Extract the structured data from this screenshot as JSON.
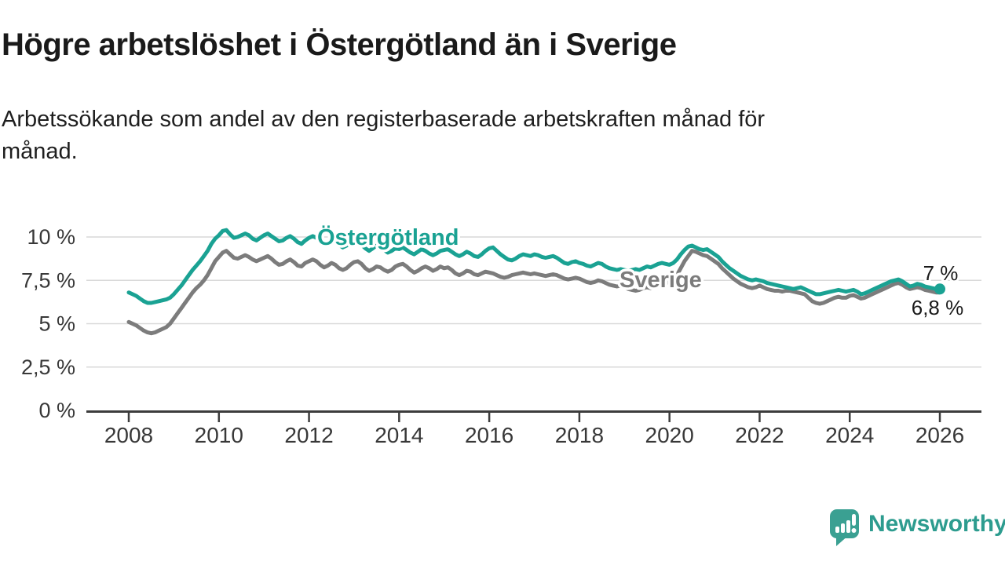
{
  "header": {
    "title": "Högre arbetslöshet i Östergötland än i Sverige",
    "subtitle": "Arbetssökande som andel av den registerbaserade arbetskraften månad för månad."
  },
  "branding": {
    "logo_text": "Newsworthy",
    "logo_icon": "bar-chart-speech-bubble-icon",
    "logo_color": "#3aa092"
  },
  "chart_data": {
    "type": "line",
    "title": "Högre arbetslöshet i Östergötland än i Sverige",
    "subtitle": "Arbetssökande som andel av den registerbaserade arbetskraften månad för månad.",
    "unit": "%",
    "grid": "horizontal",
    "legend_position": "inline-labels",
    "x_start_year": 2008,
    "x_step_months": 1,
    "x_end_year": 2026,
    "x_ticks": [
      2008,
      2010,
      2012,
      2014,
      2016,
      2018,
      2020,
      2022,
      2024,
      2026
    ],
    "y_ticks": [
      {
        "value": 0,
        "label": "0 %"
      },
      {
        "value": 2.5,
        "label": "2,5 %"
      },
      {
        "value": 5,
        "label": "5 %"
      },
      {
        "value": 7.5,
        "label": "7,5 %"
      },
      {
        "value": 10,
        "label": "10 %"
      }
    ],
    "ylim": [
      0,
      11
    ],
    "series": [
      {
        "name": "Sverige",
        "color": "#7c7c7c",
        "end_label": "6,8 %",
        "latest_value": 6.8,
        "end_marker": false,
        "values": [
          5.1,
          5.0,
          4.9,
          4.75,
          4.6,
          4.5,
          4.45,
          4.5,
          4.6,
          4.7,
          4.8,
          5.0,
          5.3,
          5.6,
          5.9,
          6.2,
          6.5,
          6.8,
          7.05,
          7.25,
          7.5,
          7.8,
          8.2,
          8.6,
          8.85,
          9.1,
          9.2,
          9.0,
          8.8,
          8.75,
          8.85,
          8.95,
          8.85,
          8.7,
          8.6,
          8.7,
          8.8,
          8.9,
          8.75,
          8.55,
          8.4,
          8.45,
          8.6,
          8.7,
          8.55,
          8.35,
          8.3,
          8.5,
          8.6,
          8.7,
          8.6,
          8.4,
          8.25,
          8.35,
          8.5,
          8.4,
          8.2,
          8.1,
          8.2,
          8.4,
          8.55,
          8.6,
          8.45,
          8.2,
          8.05,
          8.15,
          8.3,
          8.25,
          8.1,
          8.0,
          8.1,
          8.3,
          8.4,
          8.45,
          8.3,
          8.1,
          7.95,
          8.05,
          8.2,
          8.3,
          8.2,
          8.05,
          8.15,
          8.3,
          8.2,
          8.25,
          8.1,
          7.9,
          7.8,
          7.9,
          8.05,
          8.0,
          7.85,
          7.8,
          7.9,
          8.0,
          7.95,
          7.9,
          7.8,
          7.7,
          7.65,
          7.7,
          7.8,
          7.85,
          7.9,
          7.95,
          7.9,
          7.85,
          7.9,
          7.85,
          7.8,
          7.75,
          7.8,
          7.85,
          7.8,
          7.7,
          7.6,
          7.55,
          7.6,
          7.65,
          7.6,
          7.5,
          7.4,
          7.35,
          7.4,
          7.5,
          7.45,
          7.35,
          7.25,
          7.2,
          7.15,
          7.2,
          7.1,
          7.0,
          6.95,
          6.9,
          6.95,
          7.05,
          7.1,
          7.05,
          7.15,
          7.25,
          7.3,
          7.35,
          7.4,
          7.55,
          7.8,
          8.2,
          8.6,
          8.9,
          9.2,
          9.15,
          9.05,
          8.95,
          8.9,
          8.75,
          8.6,
          8.45,
          8.2,
          8.0,
          7.8,
          7.6,
          7.45,
          7.3,
          7.2,
          7.1,
          7.05,
          7.1,
          7.2,
          7.1,
          7.0,
          6.95,
          6.9,
          6.9,
          6.85,
          6.9,
          6.9,
          6.85,
          6.8,
          6.75,
          6.7,
          6.5,
          6.3,
          6.2,
          6.15,
          6.2,
          6.3,
          6.4,
          6.5,
          6.55,
          6.5,
          6.5,
          6.6,
          6.65,
          6.55,
          6.45,
          6.5,
          6.6,
          6.7,
          6.8,
          6.9,
          7.0,
          7.1,
          7.2,
          7.3,
          7.35,
          7.25,
          7.1,
          7.0,
          7.05,
          7.1,
          7.05,
          6.95,
          6.9,
          6.85,
          6.8,
          6.8
        ]
      },
      {
        "name": "Östergötland",
        "color": "#1aa293",
        "end_label": "7 %",
        "latest_value": 7.0,
        "end_marker": true,
        "values": [
          6.8,
          6.7,
          6.6,
          6.45,
          6.3,
          6.2,
          6.2,
          6.25,
          6.3,
          6.35,
          6.4,
          6.5,
          6.7,
          6.95,
          7.2,
          7.5,
          7.8,
          8.1,
          8.35,
          8.6,
          8.9,
          9.2,
          9.6,
          9.9,
          10.1,
          10.35,
          10.4,
          10.15,
          9.95,
          10.0,
          10.1,
          10.2,
          10.1,
          9.9,
          9.8,
          9.95,
          10.1,
          10.2,
          10.05,
          9.9,
          9.75,
          9.8,
          9.95,
          10.05,
          9.9,
          9.7,
          9.6,
          9.8,
          9.95,
          10.05,
          9.95,
          9.75,
          9.6,
          9.7,
          9.85,
          9.75,
          9.55,
          9.4,
          9.5,
          9.65,
          9.6,
          9.7,
          9.55,
          9.35,
          9.2,
          9.35,
          9.5,
          9.4,
          9.25,
          9.1,
          9.2,
          9.35,
          9.3,
          9.4,
          9.25,
          9.1,
          9.0,
          9.15,
          9.3,
          9.2,
          9.05,
          8.95,
          9.05,
          9.2,
          9.25,
          9.3,
          9.15,
          9.0,
          8.9,
          9.0,
          9.15,
          9.05,
          8.9,
          8.85,
          9.0,
          9.2,
          9.35,
          9.4,
          9.2,
          9.0,
          8.85,
          8.7,
          8.65,
          8.75,
          8.9,
          9.0,
          8.95,
          8.9,
          9.0,
          8.95,
          8.85,
          8.8,
          8.85,
          8.9,
          8.8,
          8.65,
          8.5,
          8.45,
          8.55,
          8.6,
          8.5,
          8.45,
          8.35,
          8.3,
          8.4,
          8.5,
          8.45,
          8.3,
          8.2,
          8.15,
          8.1,
          8.15,
          8.1,
          8.05,
          8.1,
          8.15,
          8.1,
          8.2,
          8.3,
          8.25,
          8.35,
          8.45,
          8.5,
          8.45,
          8.4,
          8.5,
          8.7,
          9.0,
          9.25,
          9.45,
          9.5,
          9.4,
          9.3,
          9.25,
          9.3,
          9.15,
          9.0,
          8.85,
          8.6,
          8.4,
          8.2,
          8.05,
          7.9,
          7.75,
          7.65,
          7.55,
          7.5,
          7.55,
          7.5,
          7.45,
          7.35,
          7.3,
          7.25,
          7.2,
          7.15,
          7.1,
          7.05,
          7.0,
          7.05,
          7.1,
          7.0,
          6.9,
          6.8,
          6.7,
          6.7,
          6.75,
          6.8,
          6.85,
          6.9,
          6.95,
          6.9,
          6.85,
          6.9,
          6.95,
          6.85,
          6.7,
          6.75,
          6.85,
          6.95,
          7.05,
          7.15,
          7.25,
          7.35,
          7.45,
          7.5,
          7.55,
          7.45,
          7.3,
          7.15,
          7.2,
          7.3,
          7.25,
          7.15,
          7.1,
          7.05,
          7.0,
          7.0
        ]
      }
    ]
  }
}
